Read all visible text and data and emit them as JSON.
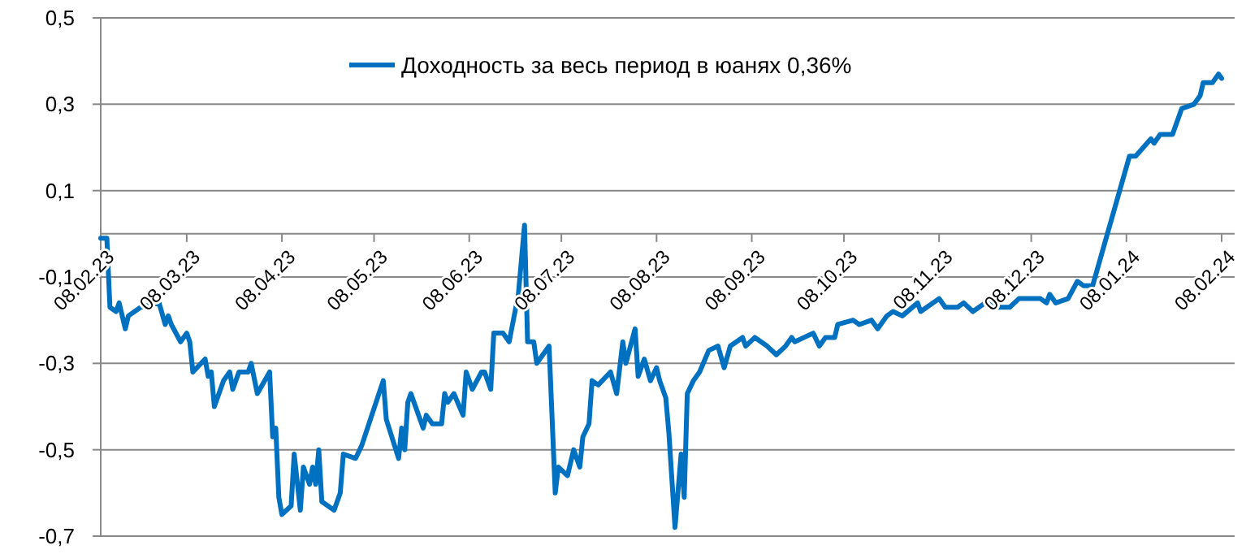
{
  "chart_data": {
    "type": "line",
    "legend": "top",
    "grid": "y",
    "marker": "none",
    "line_style": "solid",
    "xlim": [
      "2023-02-08",
      "2024-02-08"
    ],
    "xticks": [
      {
        "value": "2023-02-08",
        "label": "08.02.23"
      },
      {
        "value": "2023-03-08",
        "label": "08.03.23"
      },
      {
        "value": "2023-04-08",
        "label": "08.04.23"
      },
      {
        "value": "2023-05-08",
        "label": "08.05.23"
      },
      {
        "value": "2023-06-08",
        "label": "08.06.23"
      },
      {
        "value": "2023-07-08",
        "label": "08.07.23"
      },
      {
        "value": "2023-08-08",
        "label": "08.08.23"
      },
      {
        "value": "2023-09-08",
        "label": "08.09.23"
      },
      {
        "value": "2023-10-08",
        "label": "08.10.23"
      },
      {
        "value": "2023-11-08",
        "label": "08.11.23"
      },
      {
        "value": "2023-12-08",
        "label": "08.12.23"
      },
      {
        "value": "2024-01-08",
        "label": "08.01.24"
      },
      {
        "value": "2024-02-08",
        "label": "08.02.24"
      }
    ],
    "ylim": [
      -0.7,
      0.5
    ],
    "yticks": [
      {
        "value": -0.7,
        "label": "-0,7"
      },
      {
        "value": -0.5,
        "label": "-0,5"
      },
      {
        "value": -0.3,
        "label": "-0,3"
      },
      {
        "value": -0.1,
        "label": "-0,1"
      },
      {
        "value": 0.1,
        "label": "0,1"
      },
      {
        "value": 0.3,
        "label": "0,3"
      },
      {
        "value": 0.5,
        "label": "0,5"
      }
    ],
    "x": [
      "2023-02-08",
      "2023-02-10",
      "2023-02-11",
      "2023-02-13",
      "2023-02-14",
      "2023-02-16",
      "2023-02-17",
      "2023-02-21",
      "2023-02-27",
      "2023-03-01",
      "2023-03-02",
      "2023-03-03",
      "2023-03-06",
      "2023-03-08",
      "2023-03-09",
      "2023-03-10",
      "2023-03-14",
      "2023-03-15",
      "2023-03-16",
      "2023-03-17",
      "2023-03-20",
      "2023-03-22",
      "2023-03-23",
      "2023-03-25",
      "2023-03-28",
      "2023-03-29",
      "2023-03-31",
      "2023-04-04",
      "2023-04-05",
      "2023-04-06",
      "2023-04-07",
      "2023-04-08",
      "2023-04-11",
      "2023-04-12",
      "2023-04-14",
      "2023-04-15",
      "2023-04-17",
      "2023-04-18",
      "2023-04-19",
      "2023-04-20",
      "2023-04-21",
      "2023-04-25",
      "2023-04-27",
      "2023-04-28",
      "2023-05-02",
      "2023-05-04",
      "2023-05-11",
      "2023-05-12",
      "2023-05-16",
      "2023-05-17",
      "2023-05-18",
      "2023-05-19",
      "2023-05-20",
      "2023-05-24",
      "2023-05-25",
      "2023-05-27",
      "2023-05-30",
      "2023-05-31",
      "2023-06-01",
      "2023-06-03",
      "2023-06-06",
      "2023-06-07",
      "2023-06-09",
      "2023-06-12",
      "2023-06-13",
      "2023-06-15",
      "2023-06-16",
      "2023-06-19",
      "2023-06-21",
      "2023-06-24",
      "2023-06-26",
      "2023-06-27",
      "2023-06-29",
      "2023-06-30",
      "2023-07-04",
      "2023-07-06",
      "2023-07-07",
      "2023-07-10",
      "2023-07-12",
      "2023-07-14",
      "2023-07-15",
      "2023-07-17",
      "2023-07-18",
      "2023-07-20",
      "2023-07-24",
      "2023-07-26",
      "2023-07-28",
      "2023-07-29",
      "2023-08-01",
      "2023-08-02",
      "2023-08-04",
      "2023-08-06",
      "2023-08-08",
      "2023-08-09",
      "2023-08-11",
      "2023-08-12",
      "2023-08-14",
      "2023-08-16",
      "2023-08-17",
      "2023-08-18",
      "2023-08-20",
      "2023-08-22",
      "2023-08-25",
      "2023-08-28",
      "2023-08-30",
      "2023-09-01",
      "2023-09-05",
      "2023-09-06",
      "2023-09-09",
      "2023-09-13",
      "2023-09-16",
      "2023-09-19",
      "2023-09-21",
      "2023-09-22",
      "2023-09-28",
      "2023-09-30",
      "2023-10-02",
      "2023-10-05",
      "2023-10-06",
      "2023-10-11",
      "2023-10-13",
      "2023-10-17",
      "2023-10-19",
      "2023-10-22",
      "2023-10-24",
      "2023-10-27",
      "2023-11-01",
      "2023-11-02",
      "2023-11-08",
      "2023-11-10",
      "2023-11-14",
      "2023-11-16",
      "2023-11-19",
      "2023-11-23",
      "2023-11-27",
      "2023-12-01",
      "2023-12-04",
      "2023-12-08",
      "2023-12-11",
      "2023-12-13",
      "2023-12-14",
      "2023-12-16",
      "2023-12-20",
      "2023-12-23",
      "2023-12-25",
      "2023-12-28",
      "2024-01-09",
      "2024-01-11",
      "2024-01-16",
      "2024-01-17",
      "2024-01-19",
      "2024-01-23",
      "2024-01-26",
      "2024-01-30",
      "2024-02-01",
      "2024-02-02",
      "2024-02-05",
      "2024-02-07",
      "2024-02-08"
    ],
    "series": [
      {
        "name": "Доходность за весь период в юанях 0,36%",
        "color": "#0070c0",
        "values": [
          -0.01,
          -0.01,
          -0.17,
          -0.18,
          -0.16,
          -0.22,
          -0.19,
          -0.17,
          -0.16,
          -0.21,
          -0.19,
          -0.21,
          -0.25,
          -0.23,
          -0.25,
          -0.32,
          -0.29,
          -0.33,
          -0.32,
          -0.4,
          -0.34,
          -0.32,
          -0.36,
          -0.32,
          -0.32,
          -0.3,
          -0.37,
          -0.32,
          -0.47,
          -0.45,
          -0.61,
          -0.65,
          -0.63,
          -0.51,
          -0.64,
          -0.54,
          -0.58,
          -0.54,
          -0.58,
          -0.5,
          -0.62,
          -0.64,
          -0.6,
          -0.51,
          -0.52,
          -0.49,
          -0.34,
          -0.43,
          -0.52,
          -0.45,
          -0.5,
          -0.39,
          -0.37,
          -0.45,
          -0.42,
          -0.44,
          -0.44,
          -0.37,
          -0.39,
          -0.37,
          -0.42,
          -0.32,
          -0.36,
          -0.32,
          -0.32,
          -0.36,
          -0.23,
          -0.23,
          -0.25,
          -0.14,
          0.02,
          -0.25,
          -0.25,
          -0.3,
          -0.26,
          -0.6,
          -0.54,
          -0.56,
          -0.5,
          -0.54,
          -0.47,
          -0.44,
          -0.34,
          -0.35,
          -0.32,
          -0.37,
          -0.25,
          -0.3,
          -0.22,
          -0.33,
          -0.29,
          -0.34,
          -0.31,
          -0.34,
          -0.38,
          -0.46,
          -0.68,
          -0.51,
          -0.61,
          -0.37,
          -0.34,
          -0.32,
          -0.27,
          -0.26,
          -0.31,
          -0.26,
          -0.24,
          -0.26,
          -0.24,
          -0.26,
          -0.28,
          -0.26,
          -0.24,
          -0.25,
          -0.23,
          -0.26,
          -0.24,
          -0.24,
          -0.21,
          -0.2,
          -0.21,
          -0.2,
          -0.22,
          -0.19,
          -0.18,
          -0.19,
          -0.16,
          -0.18,
          -0.15,
          -0.17,
          -0.17,
          -0.16,
          -0.18,
          -0.16,
          -0.17,
          -0.17,
          -0.15,
          -0.15,
          -0.15,
          -0.16,
          -0.14,
          -0.16,
          -0.15,
          -0.11,
          -0.12,
          -0.12,
          0.18,
          0.18,
          0.22,
          0.21,
          0.23,
          0.23,
          0.29,
          0.3,
          0.32,
          0.35,
          0.35,
          0.37,
          0.36
        ]
      }
    ]
  }
}
